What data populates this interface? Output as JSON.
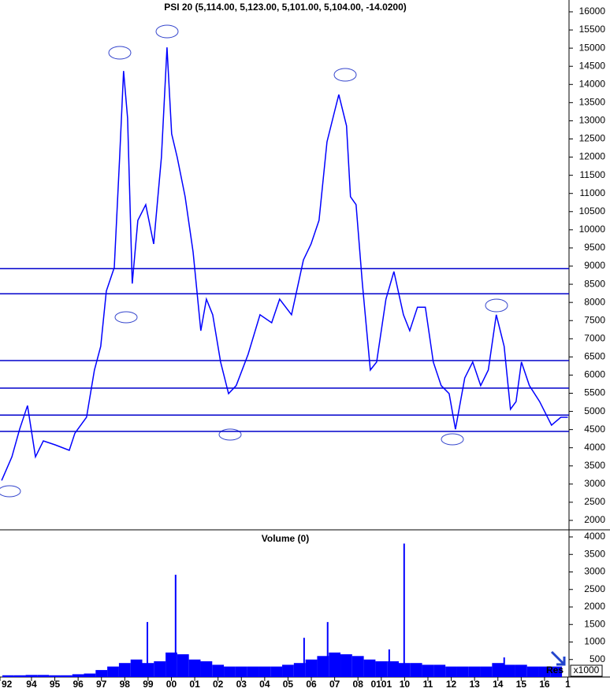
{
  "chart_data": [
    {
      "type": "line",
      "title": "PSI 20 (5,114.00, 5,123.00, 5,101.00, 5,104.00, -14.0200)",
      "xlim": [
        1992.65,
        2017.05
      ],
      "ylim": [
        1762,
        16325
      ],
      "yticks": [
        2000,
        2500,
        3000,
        3500,
        4000,
        4500,
        5000,
        5500,
        6000,
        6500,
        7000,
        7500,
        8000,
        8500,
        9000,
        9500,
        10000,
        10500,
        11000,
        11500,
        12000,
        12500,
        13000,
        13500,
        14000,
        14500,
        15000,
        15500,
        16000
      ],
      "x": [
        1992.72,
        1993.16,
        1993.49,
        1993.83,
        1994.17,
        1994.51,
        1995.01,
        1995.62,
        1995.86,
        1996.36,
        1996.7,
        1996.97,
        1997.21,
        1997.55,
        1997.78,
        1997.95,
        1998.12,
        1998.32,
        1998.56,
        1998.9,
        1999.24,
        1999.57,
        1999.81,
        2000.01,
        2000.25,
        2000.59,
        2000.93,
        2001.26,
        2001.5,
        2001.77,
        2002.11,
        2002.45,
        2002.78,
        2003.29,
        2003.8,
        2004.3,
        2004.64,
        2005.15,
        2005.66,
        2005.99,
        2006.33,
        2006.67,
        2007.01,
        2007.18,
        2007.51,
        2007.68,
        2007.92,
        2008.19,
        2008.53,
        2008.8,
        2009.2,
        2009.54,
        2009.95,
        2010.22,
        2010.55,
        2010.89,
        2011.23,
        2011.57,
        2011.91,
        2012.18,
        2012.58,
        2012.92,
        2013.26,
        2013.59,
        2013.93,
        2014.27,
        2014.54,
        2014.78,
        2015.01,
        2015.35,
        2015.79,
        2016.3,
        2016.7,
        2017.0
      ],
      "series": [
        {
          "color": "#0000ff",
          "values": [
            3100,
            3750,
            4510,
            5160,
            3750,
            4190,
            4080,
            3930,
            4400,
            4840,
            6140,
            6790,
            8310,
            8960,
            11990,
            14370,
            13070,
            8520,
            10260,
            10690,
            9610,
            11990,
            15020,
            12640,
            11990,
            10910,
            9390,
            7220,
            8090,
            7660,
            6360,
            5490,
            5710,
            6570,
            7660,
            7440,
            8090,
            7660,
            9170,
            9610,
            10260,
            12420,
            13290,
            13720,
            12860,
            10910,
            10690,
            8520,
            6140,
            6360,
            8090,
            8850,
            7660,
            7220,
            7870,
            7870,
            6360,
            5710,
            5490,
            4510,
            5920,
            6360,
            5710,
            6140,
            7660,
            6790,
            5060,
            5270,
            6360,
            5710,
            5270,
            4620,
            4840,
            4840
          ]
        }
      ],
      "hlines": {
        "color": "#0000cc",
        "values": [
          8930,
          8240,
          6400,
          5640,
          4900,
          4450
        ]
      }
    },
    {
      "type": "bar",
      "title": "Volume (0)",
      "unit_label": "x1000",
      "annotation": "Res",
      "xlim": [
        1992.65,
        2017.05
      ],
      "ylim": [
        0,
        4180
      ],
      "yticks": [
        500,
        1000,
        1500,
        2000,
        2500,
        3000,
        3500,
        4000
      ],
      "xticks": [
        {
          "value": 1992.65,
          "label": "92"
        },
        {
          "value": 1994,
          "label": "94"
        },
        {
          "value": 1995,
          "label": "95"
        },
        {
          "value": 1996,
          "label": "96"
        },
        {
          "value": 1997,
          "label": "97"
        },
        {
          "value": 1998,
          "label": "98"
        },
        {
          "value": 1999,
          "label": "99"
        },
        {
          "value": 2000,
          "label": "00"
        },
        {
          "value": 2001,
          "label": "01"
        },
        {
          "value": 2002,
          "label": "02"
        },
        {
          "value": 2003,
          "label": "03"
        },
        {
          "value": 2004,
          "label": "04"
        },
        {
          "value": 2005,
          "label": "05"
        },
        {
          "value": 2006,
          "label": "06"
        },
        {
          "value": 2007,
          "label": "07"
        },
        {
          "value": 2008,
          "label": "08"
        },
        {
          "value": 2009,
          "label": "0101"
        },
        {
          "value": 2010,
          "label": "10"
        },
        {
          "value": 2011,
          "label": "11"
        },
        {
          "value": 2012,
          "label": "12"
        },
        {
          "value": 2013,
          "label": "13"
        },
        {
          "value": 2014,
          "label": "14"
        },
        {
          "value": 2015,
          "label": "15"
        },
        {
          "value": 2016,
          "label": "16"
        },
        {
          "value": 2017,
          "label": "1"
        }
      ],
      "series": [
        {
          "color": "#0000ff",
          "x": [
            1993.0,
            1993.5,
            1994.0,
            1994.5,
            1995.0,
            1995.5,
            1996.0,
            1996.5,
            1997.0,
            1997.5,
            1998.0,
            1998.5,
            1999.0,
            1999.5,
            2000.0,
            2000.5,
            2001.0,
            2001.5,
            2002.0,
            2002.5,
            2003.0,
            2003.5,
            2004.0,
            2004.5,
            2005.0,
            2005.5,
            2006.0,
            2006.5,
            2007.0,
            2007.5,
            2008.0,
            2008.5,
            2009.0,
            2009.5,
            2010.0,
            2010.5,
            2011.0,
            2011.5,
            2012.0,
            2012.5,
            2013.0,
            2013.5,
            2014.0,
            2014.5,
            2015.0,
            2015.5,
            2016.0,
            2016.5
          ],
          "values": [
            50,
            50,
            60,
            60,
            50,
            50,
            80,
            100,
            200,
            300,
            400,
            500,
            400,
            450,
            700,
            650,
            500,
            450,
            350,
            300,
            300,
            300,
            300,
            300,
            350,
            400,
            500,
            600,
            700,
            650,
            600,
            500,
            450,
            450,
            400,
            400,
            350,
            350,
            300,
            300,
            300,
            300,
            400,
            350,
            350,
            300,
            300,
            300
          ]
        },
        {
          "color": "#0000ff",
          "x": [
            1998.97,
            2000.18,
            2005.69,
            2006.7,
            2009.34,
            2009.98,
            2014.27
          ],
          "values": [
            1570,
            2920,
            1120,
            1570,
            790,
            3810,
            560
          ]
        }
      ]
    }
  ]
}
